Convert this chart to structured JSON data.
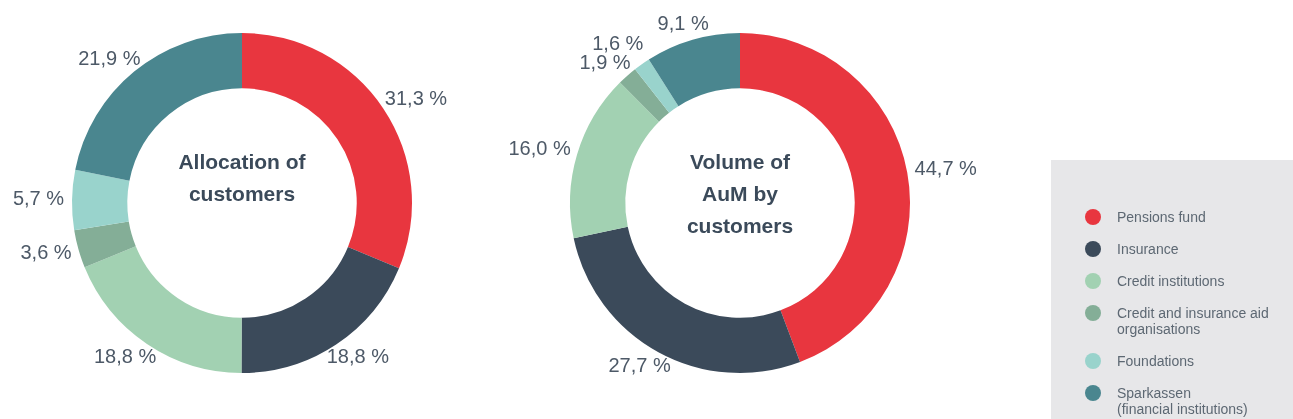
{
  "chart_data": [
    {
      "type": "donut",
      "title": "Allocation of customers",
      "categories": [
        null,
        null,
        null,
        null,
        null,
        null
      ],
      "values": [
        31.3,
        18.8,
        18.8,
        3.6,
        5.7,
        21.9
      ],
      "colors": [
        "#e8363f",
        "#3b4a5a",
        "#a2d1b2",
        "#84ae97",
        "#99d3cc",
        "#4a868f"
      ],
      "value_labels": [
        "31,3 %",
        "18,8 %",
        "18,8 %",
        "3,6 %",
        "5,7 %",
        "21,9 %"
      ]
    },
    {
      "type": "donut",
      "title": "Volume of AuM by customers",
      "categories": [
        "Pensions fund",
        "Insurance",
        "Credit institutions",
        "Credit and insurance aid organisations",
        "Foundations",
        "Sparkassen (financial institutions)"
      ],
      "values": [
        44.7,
        27.7,
        16.0,
        1.9,
        1.6,
        9.1
      ],
      "colors": [
        "#e8363f",
        "#3b4a5a",
        "#a2d1b2",
        "#84ae97",
        "#99d3cc",
        "#4a868f"
      ],
      "value_labels": [
        "44,7 %",
        "27,7 %",
        "16,0 %",
        "1,9 %",
        "1,6 %",
        "9,1 %"
      ],
      "legend": "right"
    }
  ]
}
